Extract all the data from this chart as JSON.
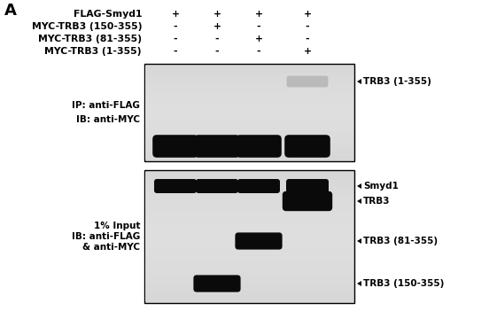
{
  "panel_label": "A",
  "header_labels": [
    "FLAG-Smyd1",
    "MYC-TRB3 (150-355)",
    "MYC-TRB3 (81-355)",
    "MYC-TRB3 (1-355)"
  ],
  "header_plus_minus": [
    [
      "+",
      "+",
      "+",
      "+"
    ],
    [
      "-",
      "+",
      "-",
      "-"
    ],
    [
      "-",
      "-",
      "+",
      "-"
    ],
    [
      "-",
      "-",
      "-",
      "+"
    ]
  ],
  "panel1_label_left_line1": "IP: anti-FLAG",
  "panel1_label_left_line2": "IB: anti-MYC",
  "panel2_label_left_line1": "1% Input",
  "panel2_label_left_line2": "IB: anti-FLAG",
  "panel2_label_left_line3": "& anti-MYC",
  "panel1_right_label": "TRB3 (1-355)",
  "panel2_right_labels": [
    "Smyd1",
    "TRB3",
    "TRB3 (81-355)",
    "TRB3 (150-355)"
  ],
  "bg_color": "#ffffff",
  "gel_bg_light": "#e8e8e8",
  "band_color": "#0a0a0a",
  "faint_band_color": "#b0b0b0",
  "header_fontsize": 7.8,
  "label_fontsize": 7.5,
  "arrow_fontsize": 7.5
}
